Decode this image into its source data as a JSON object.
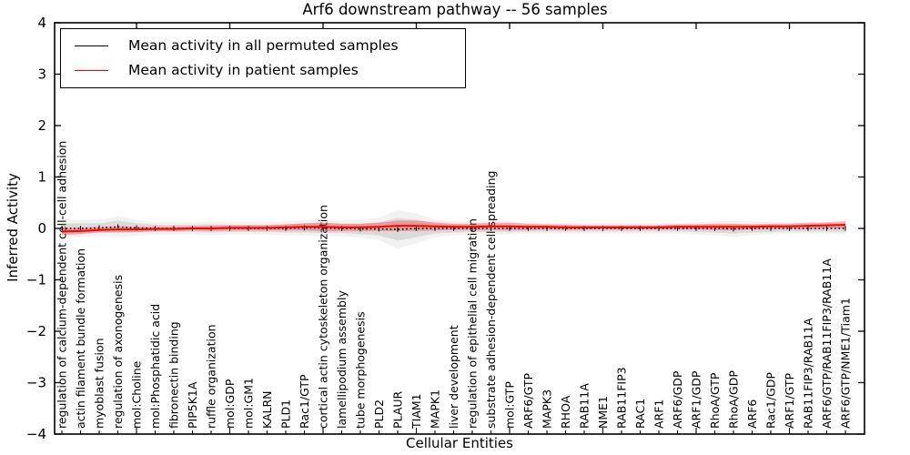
{
  "figure": {
    "title": "Arf6 downstream pathway -- 56 samples",
    "xlabel": "Cellular Entities",
    "ylabel": "Inferred Activity"
  },
  "legend": {
    "entries": [
      {
        "label": "Mean activity in all permuted samples",
        "color": "#000000"
      },
      {
        "label": "Mean activity in patient samples",
        "color": "#ff0000"
      }
    ]
  },
  "chart_data": {
    "type": "line",
    "title": "Arf6 downstream pathway -- 56 samples",
    "xlabel": "Cellular Entities",
    "ylabel": "Inferred Activity",
    "ylim": [
      -4,
      4
    ],
    "y_ticks": [
      4,
      3,
      2,
      1,
      0,
      -1,
      -2,
      -3,
      -4
    ],
    "y_tick_labels": [
      "4",
      "3",
      "2",
      "1",
      "0",
      "−1",
      "−2",
      "−3",
      "−4"
    ],
    "legend_position": "upper left",
    "grid": false,
    "categories": [
      "regulation of calcium-dependent cell-cell adhesion",
      "actin filament bundle formation",
      "myoblast fusion",
      "regulation of axonogenesis",
      "mol:Choline",
      "mol:Phosphatidic acid",
      "fibronectin binding",
      "PIP5K1A",
      "ruffle organization",
      "mol:GDP",
      "mol:GM1",
      "KALRN",
      "PLD1",
      "Rac1/GTP",
      "cortical actin cytoskeleton organization",
      "lamellipodium assembly",
      "tube morphogenesis",
      "PLD2",
      "PLAUR",
      "TIAM1",
      "MAPK1",
      "liver development",
      "regulation of epithelial cell migration",
      "substrate adhesion-dependent cell spreading",
      "mol:GTP",
      "ARF6/GTP",
      "MAPK3",
      "RHOA",
      "RAB11A",
      "NME1",
      "RAB11FIP3",
      "RAC1",
      "ARF1",
      "ARF6/GDP",
      "ARF1/GDP",
      "RhoA/GTP",
      "RhoA/GDP",
      "ARF6",
      "Rac1/GDP",
      "ARF1/GTP",
      "RAB11FIP3/RAB11A",
      "ARF6/GTP/RAB11FIP3/RAB11A",
      "ARF6/GTP/NME1/Tiam1"
    ],
    "series": [
      {
        "name": "Mean activity in all permuted samples",
        "color": "#000000",
        "style": "dotted-with-caps",
        "values": [
          0,
          0,
          0.01,
          0.03,
          0.01,
          0,
          0,
          0,
          0,
          0,
          0,
          0,
          0,
          0.01,
          0.01,
          0,
          -0.01,
          -0.01,
          -0.02,
          0,
          0,
          0,
          0,
          0,
          0,
          0,
          0,
          0,
          0,
          0,
          0,
          0,
          0,
          0,
          0,
          0,
          -0.01,
          0,
          0,
          0,
          0,
          0,
          0
        ],
        "band_halfwidth": [
          0.1,
          0.1,
          0.09,
          0.12,
          0.09,
          0.07,
          0.07,
          0.07,
          0.08,
          0.07,
          0.07,
          0.07,
          0.08,
          0.09,
          0.1,
          0.09,
          0.1,
          0.13,
          0.22,
          0.17,
          0.1,
          0.08,
          0.07,
          0.07,
          0.07,
          0.06,
          0.06,
          0.06,
          0.06,
          0.06,
          0.06,
          0.06,
          0.06,
          0.06,
          0.07,
          0.08,
          0.09,
          0.08,
          0.07,
          0.06,
          0.06,
          0.06,
          0.07
        ],
        "band_color": "rgba(110,110,110,0.18)"
      },
      {
        "name": "Mean activity in patient samples",
        "color": "#ff0000",
        "style": "solid",
        "values": [
          -0.06,
          -0.05,
          -0.03,
          -0.02,
          -0.02,
          -0.01,
          -0.01,
          0,
          0,
          0.01,
          0.01,
          0.01,
          0.02,
          0.03,
          0.03,
          0.02,
          0.02,
          0.03,
          0.05,
          0.05,
          0.04,
          0.03,
          0.03,
          0.04,
          0.04,
          0.03,
          0.03,
          0.02,
          0.02,
          0.02,
          0.02,
          0.02,
          0.02,
          0.03,
          0.03,
          0.03,
          0.03,
          0.03,
          0.04,
          0.04,
          0.05,
          0.06,
          0.07
        ],
        "band_halfwidth": [
          0.07,
          0.06,
          0.05,
          0.05,
          0.05,
          0.04,
          0.04,
          0.04,
          0.05,
          0.05,
          0.05,
          0.05,
          0.06,
          0.07,
          0.08,
          0.07,
          0.07,
          0.08,
          0.1,
          0.1,
          0.08,
          0.06,
          0.06,
          0.07,
          0.07,
          0.06,
          0.05,
          0.05,
          0.04,
          0.04,
          0.04,
          0.04,
          0.04,
          0.05,
          0.05,
          0.06,
          0.06,
          0.05,
          0.05,
          0.05,
          0.06,
          0.06,
          0.07
        ],
        "band_color": "rgba(255,0,0,0.28)"
      }
    ]
  }
}
